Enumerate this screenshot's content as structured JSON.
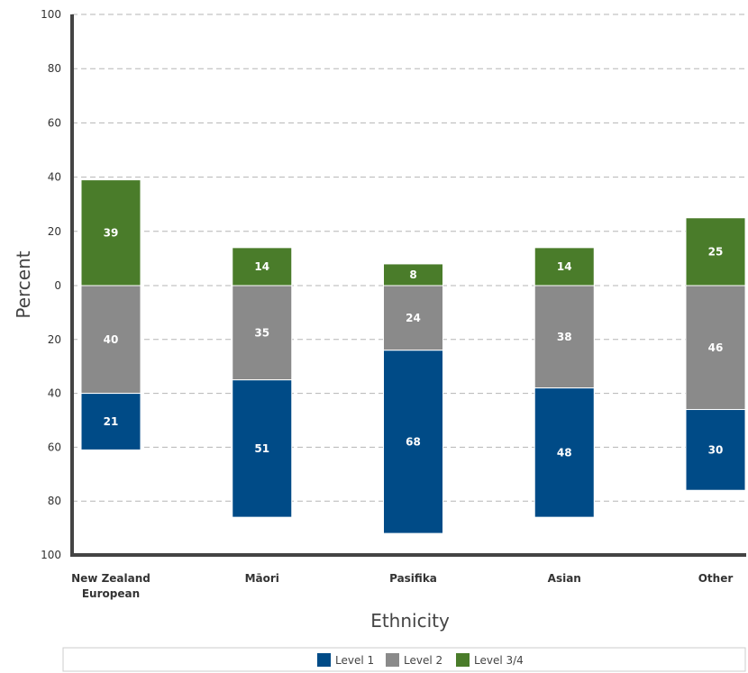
{
  "chart_data": {
    "type": "bar",
    "stacked": true,
    "diverging": true,
    "xlabel": "Ethnicity",
    "ylabel": "Percent",
    "ylim": [
      -100,
      100
    ],
    "yticks": [
      100,
      80,
      60,
      40,
      20,
      0,
      20,
      40,
      60,
      80,
      100
    ],
    "grid": true,
    "legend": "bottom",
    "categories": [
      "New Zealand European",
      "Māori",
      "Pasifika",
      "Asian",
      "Other"
    ],
    "category_lines": [
      [
        "New Zealand",
        "European"
      ],
      [
        "Māori"
      ],
      [
        "Pasifika"
      ],
      [
        "Asian"
      ],
      [
        "Other"
      ]
    ],
    "series": [
      {
        "name": "Level 1",
        "color": "#004b87",
        "direction": "below",
        "values": [
          21,
          51,
          68,
          48,
          30
        ]
      },
      {
        "name": "Level 2",
        "color": "#8a8a8a",
        "direction": "below",
        "values": [
          40,
          35,
          24,
          38,
          46
        ]
      },
      {
        "name": "Level 3/4",
        "color": "#4a7c2a",
        "direction": "above",
        "values": [
          39,
          14,
          8,
          14,
          25
        ]
      }
    ]
  }
}
